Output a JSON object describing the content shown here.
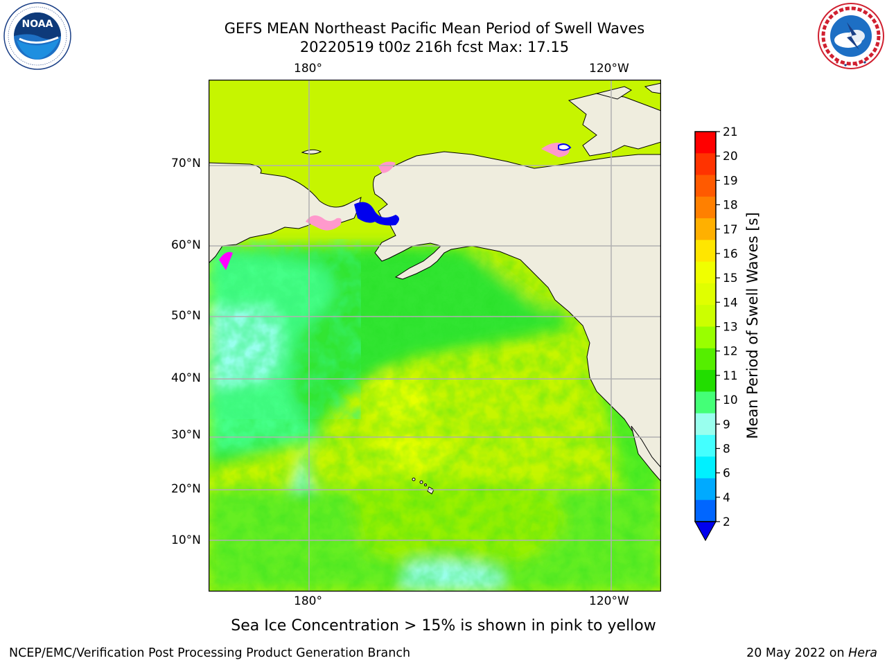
{
  "title": {
    "line1": "GEFS MEAN Northeast Pacific Mean Period of Swell Waves",
    "line2": "20220519 t00z 216h fcst   Max: 17.15"
  },
  "logos": {
    "noaa": {
      "text": "NOAA",
      "ring": "NATIONAL OCEANIC AND ATMOSPHERIC ADMINISTRATION · U.S. DEPARTMENT OF COMMERCE"
    },
    "nws": {
      "ring": "NATIONAL WEATHER SERVICE"
    }
  },
  "map": {
    "lon_top": [
      "180°",
      "120°W"
    ],
    "lon_bottom": [
      "180°",
      "120°W"
    ],
    "lat_labels": [
      "70°N",
      "60°N",
      "50°N",
      "40°N",
      "30°N",
      "20°N",
      "10°N"
    ],
    "land_color": "#efedde",
    "grid_color": "#b0b0b0"
  },
  "colorbar": {
    "label": "Mean Period of Swell Waves [s]",
    "ticks": [
      "21",
      "20",
      "19",
      "18",
      "17",
      "16",
      "15",
      "14",
      "13",
      "12",
      "11",
      "10",
      "9",
      "8",
      "6",
      "4",
      "2"
    ],
    "colors_top_to_bottom": [
      "#ff0000",
      "#ff3300",
      "#ff5a00",
      "#ff8000",
      "#ffb000",
      "#ffe600",
      "#f0ff00",
      "#e0ff00",
      "#ccff00",
      "#99ff00",
      "#55ee00",
      "#22dd00",
      "#44ff77",
      "#99ffee",
      "#44ffff",
      "#00f0ff",
      "#00aaff",
      "#0066ff"
    ],
    "extend_color": "#0000ee"
  },
  "caption": "Sea Ice Concentration > 15% is shown in pink to yellow",
  "footer": {
    "left": "NCEP/EMC/Verification Post Processing Product Generation Branch",
    "right_date": "20 May 2022 on ",
    "right_machine": "Hera"
  }
}
